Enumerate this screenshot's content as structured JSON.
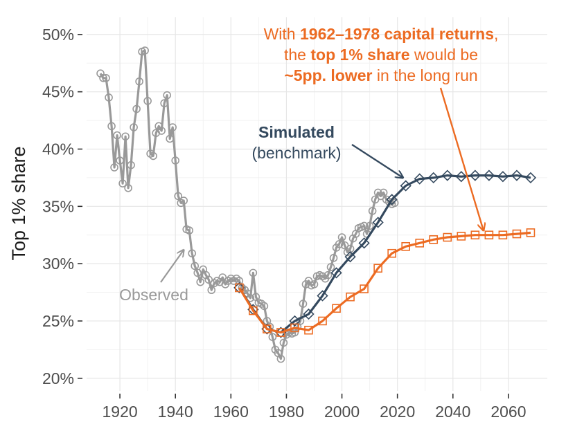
{
  "chart_data": {
    "type": "line",
    "title": "",
    "xlabel": "",
    "ylabel": "Top 1% share",
    "xlim": [
      1908,
      2074
    ],
    "ylim": [
      18.9,
      51.5
    ],
    "grid": true,
    "x_ticks": [
      {
        "value": 1920,
        "label": "1920"
      },
      {
        "value": 1940,
        "label": "1940"
      },
      {
        "value": 1960,
        "label": "1960"
      },
      {
        "value": 1980,
        "label": "1980"
      },
      {
        "value": 2000,
        "label": "2000"
      },
      {
        "value": 2020,
        "label": "2020"
      },
      {
        "value": 2040,
        "label": "2040"
      },
      {
        "value": 2060,
        "label": "2060"
      }
    ],
    "y_ticks": [
      {
        "value": 20,
        "label": "20%"
      },
      {
        "value": 25,
        "label": "25%"
      },
      {
        "value": 30,
        "label": "30%"
      },
      {
        "value": 35,
        "label": "35%"
      },
      {
        "value": 40,
        "label": "40%"
      },
      {
        "value": 45,
        "label": "45%"
      },
      {
        "value": 50,
        "label": "50%"
      }
    ],
    "series": [
      {
        "name": "Observed",
        "color": "#999999",
        "marker": "circle",
        "points": [
          [
            1913,
            46.6
          ],
          [
            1914,
            46.2
          ],
          [
            1915,
            46.2
          ],
          [
            1916,
            44.5
          ],
          [
            1917,
            42.0
          ],
          [
            1918,
            38.4
          ],
          [
            1919,
            41.2
          ],
          [
            1920,
            39.0
          ],
          [
            1921,
            37.0
          ],
          [
            1922,
            41.1
          ],
          [
            1923,
            36.6
          ],
          [
            1924,
            38.6
          ],
          [
            1925,
            41.9
          ],
          [
            1926,
            43.5
          ],
          [
            1927,
            45.9
          ],
          [
            1928,
            48.5
          ],
          [
            1929,
            48.6
          ],
          [
            1930,
            44.2
          ],
          [
            1931,
            39.6
          ],
          [
            1932,
            39.4
          ],
          [
            1933,
            41.4
          ],
          [
            1934,
            42.0
          ],
          [
            1935,
            41.6
          ],
          [
            1936,
            44.0
          ],
          [
            1937,
            44.7
          ],
          [
            1938,
            40.9
          ],
          [
            1939,
            41.9
          ],
          [
            1940,
            39.0
          ],
          [
            1941,
            35.9
          ],
          [
            1942,
            35.3
          ],
          [
            1943,
            35.5
          ],
          [
            1944,
            33.0
          ],
          [
            1945,
            32.9
          ],
          [
            1946,
            30.9
          ],
          [
            1947,
            29.8
          ],
          [
            1948,
            29.2
          ],
          [
            1949,
            28.4
          ],
          [
            1950,
            29.5
          ],
          [
            1951,
            29.0
          ],
          [
            1952,
            28.6
          ],
          [
            1953,
            27.7
          ],
          [
            1954,
            28.3
          ],
          [
            1955,
            28.5
          ],
          [
            1956,
            28.4
          ],
          [
            1957,
            28.8
          ],
          [
            1958,
            28.2
          ],
          [
            1959,
            28.5
          ],
          [
            1960,
            28.7
          ],
          [
            1961,
            28.5
          ],
          [
            1962,
            28.7
          ],
          [
            1963,
            28.5
          ],
          [
            1964,
            27.9
          ],
          [
            1965,
            27.7
          ],
          [
            1966,
            27.4
          ],
          [
            1967,
            27.0
          ],
          [
            1968,
            29.2
          ],
          [
            1969,
            27.1
          ],
          [
            1970,
            26.6
          ],
          [
            1971,
            26.5
          ],
          [
            1972,
            26.3
          ],
          [
            1973,
            25.0
          ],
          [
            1974,
            24.5
          ],
          [
            1975,
            23.6
          ],
          [
            1976,
            22.5
          ],
          [
            1977,
            22.2
          ],
          [
            1978,
            21.7
          ],
          [
            1979,
            23.1
          ],
          [
            1980,
            23.8
          ],
          [
            1981,
            24.0
          ],
          [
            1982,
            23.9
          ],
          [
            1983,
            24.0
          ],
          [
            1984,
            24.5
          ],
          [
            1985,
            25.0
          ],
          [
            1986,
            26.5
          ],
          [
            1987,
            28.2
          ],
          [
            1988,
            28.5
          ],
          [
            1989,
            28.1
          ],
          [
            1990,
            28.2
          ],
          [
            1991,
            28.9
          ],
          [
            1992,
            29.0
          ],
          [
            1993,
            28.9
          ],
          [
            1994,
            28.7
          ],
          [
            1995,
            29.0
          ],
          [
            1996,
            29.7
          ],
          [
            1997,
            30.5
          ],
          [
            1998,
            31.4
          ],
          [
            1999,
            31.7
          ],
          [
            2000,
            32.3
          ],
          [
            2001,
            31.6
          ],
          [
            2002,
            31.0
          ],
          [
            2003,
            31.3
          ],
          [
            2004,
            32.2
          ],
          [
            2005,
            32.6
          ],
          [
            2006,
            33.1
          ],
          [
            2007,
            33.2
          ],
          [
            2008,
            33.3
          ],
          [
            2009,
            32.6
          ],
          [
            2010,
            33.3
          ],
          [
            2011,
            34.6
          ],
          [
            2012,
            35.6
          ],
          [
            2013,
            36.2
          ],
          [
            2014,
            35.9
          ],
          [
            2015,
            36.2
          ],
          [
            2016,
            35.6
          ],
          [
            2017,
            35.4
          ],
          [
            2018,
            35.2
          ],
          [
            2019,
            35.3
          ]
        ]
      },
      {
        "name": "Simulated (benchmark)",
        "color": "#34495e",
        "marker": "diamond",
        "points": [
          [
            1963,
            27.9
          ],
          [
            1968,
            26.0
          ],
          [
            1973,
            24.3
          ],
          [
            1978,
            24.0
          ],
          [
            1983,
            25.0
          ],
          [
            1988,
            25.6
          ],
          [
            1993,
            27.2
          ],
          [
            1998,
            29.2
          ],
          [
            2003,
            30.6
          ],
          [
            2008,
            31.8
          ],
          [
            2013,
            33.6
          ],
          [
            2018,
            35.6
          ],
          [
            2023,
            36.8
          ],
          [
            2028,
            37.4
          ],
          [
            2033,
            37.5
          ],
          [
            2038,
            37.7
          ],
          [
            2043,
            37.6
          ],
          [
            2048,
            37.7
          ],
          [
            2053,
            37.7
          ],
          [
            2058,
            37.6
          ],
          [
            2063,
            37.7
          ],
          [
            2068,
            37.5
          ]
        ]
      },
      {
        "name": "1962-1978 capital returns",
        "color": "#ec6b22",
        "marker": "square",
        "points": [
          [
            1963,
            27.9
          ],
          [
            1968,
            25.9
          ],
          [
            1973,
            24.3
          ],
          [
            1978,
            24.0
          ],
          [
            1983,
            24.4
          ],
          [
            1988,
            24.2
          ],
          [
            1993,
            25.0
          ],
          [
            1998,
            26.1
          ],
          [
            2003,
            27.1
          ],
          [
            2008,
            27.8
          ],
          [
            2013,
            29.6
          ],
          [
            2018,
            30.9
          ],
          [
            2023,
            31.5
          ],
          [
            2028,
            31.8
          ],
          [
            2033,
            32.1
          ],
          [
            2038,
            32.3
          ],
          [
            2043,
            32.4
          ],
          [
            2048,
            32.5
          ],
          [
            2053,
            32.5
          ],
          [
            2058,
            32.5
          ],
          [
            2063,
            32.6
          ],
          [
            2068,
            32.7
          ]
        ]
      }
    ],
    "annotations": [
      {
        "id": "observed",
        "text": "Observed",
        "color": "#999999",
        "arrow_to": [
          1943,
          31.2
        ]
      },
      {
        "id": "simulated",
        "bold": "Simulated",
        "normal": "(benchmark)",
        "color": "#34495e",
        "arrow_to": [
          2022,
          37.5
        ]
      },
      {
        "id": "capital",
        "color": "#ec6b22",
        "arrow_to": [
          2051,
          32.9
        ],
        "lines": [
          [
            {
              "text": "With ",
              "bold": false
            },
            {
              "text": "1962–1978 capital returns",
              "bold": true
            },
            {
              "text": ",",
              "bold": false
            }
          ],
          [
            {
              "text": "the ",
              "bold": false
            },
            {
              "text": "top 1% share",
              "bold": true
            },
            {
              "text": " would be",
              "bold": false
            }
          ],
          [
            {
              "text": "~5pp. lower",
              "bold": true
            },
            {
              "text": " in the long run",
              "bold": false
            }
          ]
        ]
      }
    ]
  }
}
